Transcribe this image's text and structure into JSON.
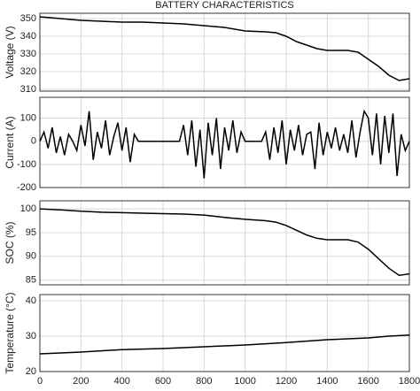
{
  "chart_data": [
    {
      "type": "line",
      "title": "BATTERY CHARACTERISTICS",
      "ylabel": "Voltage (V)",
      "color": "#000000",
      "grid": true,
      "x": [
        0,
        100,
        200,
        300,
        400,
        500,
        600,
        700,
        800,
        900,
        1000,
        1100,
        1150,
        1200,
        1250,
        1300,
        1350,
        1400,
        1450,
        1500,
        1550,
        1600,
        1650,
        1700,
        1750,
        1800
      ],
      "values": [
        351,
        350,
        349,
        348.5,
        348,
        348,
        347.5,
        347,
        346,
        345,
        343,
        342.5,
        342,
        340,
        337,
        335,
        333,
        332,
        332,
        332,
        331,
        327,
        323,
        318,
        315,
        316
      ],
      "xlim": [
        0,
        1800
      ],
      "xticks": [
        0,
        200,
        400,
        600,
        800,
        1000,
        1200,
        1400,
        1600,
        1800
      ],
      "ylim": [
        309,
        353
      ],
      "yticks": [
        310,
        320,
        330,
        340,
        350
      ]
    },
    {
      "type": "line",
      "ylabel": "Current (A)",
      "color": "#000000",
      "grid": true,
      "x": [
        0,
        20,
        40,
        60,
        80,
        100,
        120,
        140,
        160,
        180,
        200,
        220,
        240,
        260,
        280,
        300,
        320,
        340,
        360,
        380,
        400,
        420,
        440,
        460,
        480,
        500,
        520,
        540,
        560,
        580,
        600,
        620,
        640,
        660,
        680,
        700,
        720,
        740,
        760,
        780,
        800,
        820,
        840,
        860,
        880,
        900,
        920,
        940,
        960,
        980,
        1000,
        1020,
        1040,
        1060,
        1080,
        1100,
        1120,
        1140,
        1160,
        1180,
        1200,
        1220,
        1240,
        1260,
        1280,
        1300,
        1320,
        1340,
        1360,
        1380,
        1400,
        1420,
        1440,
        1460,
        1480,
        1500,
        1520,
        1540,
        1560,
        1580,
        1600,
        1620,
        1640,
        1660,
        1680,
        1700,
        1720,
        1740,
        1760,
        1780,
        1800
      ],
      "values": [
        0,
        40,
        -30,
        60,
        -50,
        20,
        -60,
        30,
        0,
        -40,
        70,
        -20,
        130,
        -80,
        40,
        -30,
        90,
        -60,
        20,
        80,
        -40,
        60,
        -90,
        30,
        0,
        0,
        0,
        0,
        0,
        0,
        0,
        0,
        0,
        0,
        0,
        70,
        -60,
        90,
        -110,
        50,
        -160,
        80,
        -60,
        100,
        -120,
        60,
        -40,
        90,
        -50,
        40,
        0,
        0,
        0,
        0,
        0,
        40,
        -80,
        60,
        -50,
        90,
        -100,
        50,
        -40,
        70,
        -60,
        30,
        40,
        -120,
        80,
        -60,
        40,
        -30,
        60,
        -40,
        30,
        -50,
        90,
        -70,
        40,
        130,
        100,
        -60,
        120,
        -100,
        110,
        -50,
        120,
        -150,
        30,
        -40,
        0
      ],
      "xlim": [
        0,
        1800
      ],
      "xticks": [
        0,
        200,
        400,
        600,
        800,
        1000,
        1200,
        1400,
        1600,
        1800
      ],
      "ylim": [
        -200,
        190
      ],
      "yticks": [
        -200,
        -100,
        0,
        100
      ]
    },
    {
      "type": "line",
      "ylabel": "SOC (%)",
      "color": "#000000",
      "grid": true,
      "x": [
        0,
        100,
        200,
        300,
        400,
        500,
        600,
        700,
        800,
        900,
        1000,
        1100,
        1150,
        1200,
        1250,
        1300,
        1350,
        1400,
        1450,
        1500,
        1550,
        1600,
        1650,
        1700,
        1750,
        1800
      ],
      "values": [
        100,
        99.8,
        99.5,
        99.3,
        99.2,
        99.1,
        99,
        98.9,
        98.7,
        98.2,
        97.8,
        97.5,
        97.2,
        96.5,
        95.5,
        94.5,
        93.8,
        93.5,
        93.5,
        93.5,
        93,
        91.5,
        89.5,
        87.5,
        86,
        86.3
      ],
      "xlim": [
        0,
        1800
      ],
      "xticks": [
        0,
        200,
        400,
        600,
        800,
        1000,
        1200,
        1400,
        1600,
        1800
      ],
      "ylim": [
        84,
        101.7
      ],
      "yticks": [
        85,
        90,
        95,
        100
      ]
    },
    {
      "type": "line",
      "ylabel": "Temperature (°C)",
      "color": "#000000",
      "grid": true,
      "x": [
        0,
        200,
        400,
        600,
        800,
        1000,
        1200,
        1400,
        1600,
        1700,
        1800
      ],
      "values": [
        25,
        25.5,
        26.2,
        26.5,
        27,
        27.5,
        28.2,
        29,
        29.5,
        30,
        30.3
      ],
      "xlim": [
        0,
        1800
      ],
      "xticks": [
        0,
        200,
        400,
        600,
        800,
        1000,
        1200,
        1400,
        1600,
        1800
      ],
      "ylim": [
        20,
        41.75
      ],
      "yticks": [
        20,
        30,
        40
      ]
    }
  ]
}
